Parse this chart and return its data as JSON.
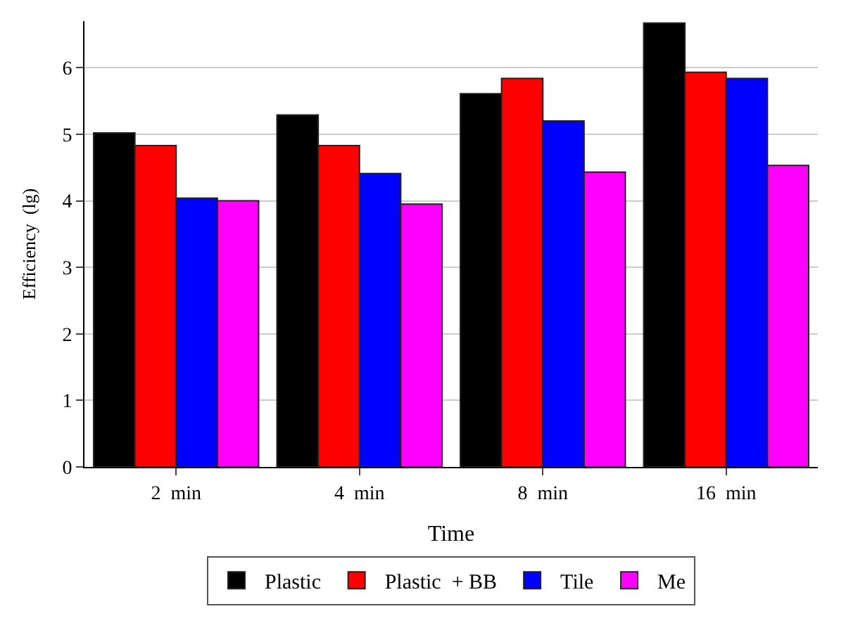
{
  "chart_data": {
    "type": "bar",
    "xlabel": "Time",
    "ylabel": "Efficiency  (lg)",
    "categories": [
      "2  min",
      "4  min",
      "8  min",
      "16  min"
    ],
    "series": [
      {
        "name": "Plastic",
        "color": "#000000",
        "values": [
          5.02,
          5.29,
          5.61,
          6.67
        ]
      },
      {
        "name": "Plastic  + BB",
        "color": "#ff0000",
        "values": [
          4.83,
          4.83,
          5.84,
          5.93
        ]
      },
      {
        "name": "Tile",
        "color": "#0000ff",
        "values": [
          4.04,
          4.41,
          5.2,
          5.84
        ]
      },
      {
        "name": "Me",
        "color": "#ff00ff",
        "values": [
          4.0,
          3.95,
          4.43,
          4.53
        ]
      }
    ],
    "ylim": [
      0,
      6.7
    ],
    "yticks": [
      0,
      1,
      2,
      3,
      4,
      5,
      6
    ],
    "grid": "y",
    "legend": "bottom"
  }
}
